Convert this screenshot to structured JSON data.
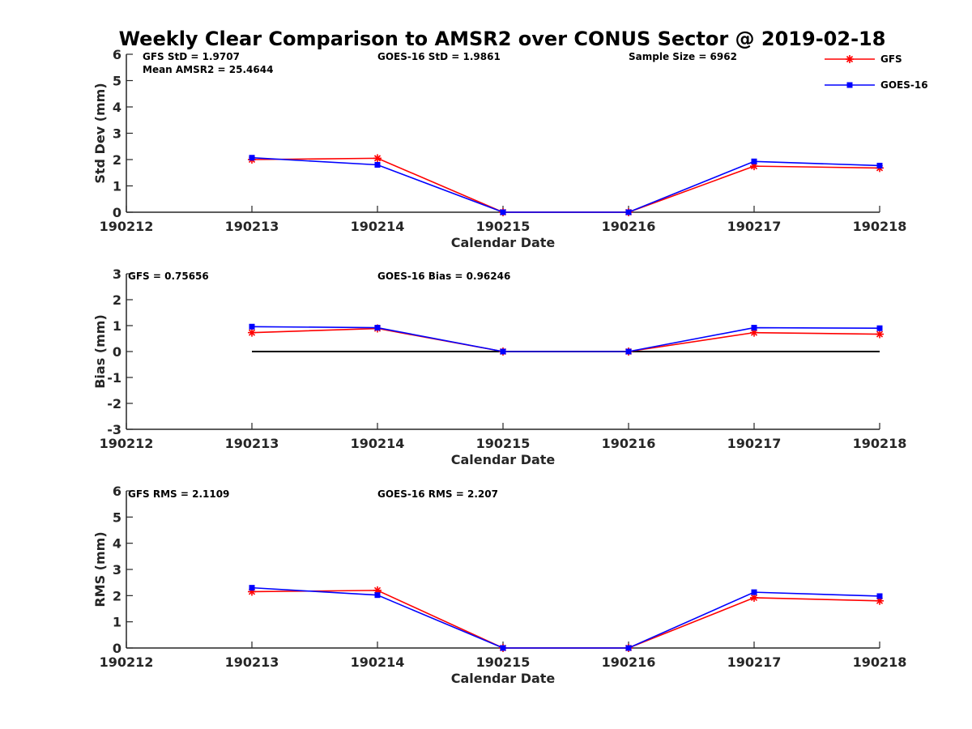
{
  "title": "Weekly Clear Comparison to AMSR2 over CONUS Sector @ 2019-02-18",
  "colors": {
    "gfs": "#ff0000",
    "goes": "#0000ff",
    "axis": "#262626",
    "zero_line": "#000000"
  },
  "legend": {
    "placement": "top-right",
    "items": [
      {
        "label": "GFS",
        "marker": "asterisk",
        "color": "#ff0000"
      },
      {
        "label": "GOES-16",
        "marker": "square",
        "color": "#0000ff"
      }
    ]
  },
  "chart_data": [
    {
      "type": "line",
      "xlabel": "Calendar Date",
      "ylabel": "Std Dev (mm)",
      "x": [
        "190212",
        "190213",
        "190214",
        "190215",
        "190216",
        "190217",
        "190218"
      ],
      "ylim": [
        0,
        6
      ],
      "yticks": [
        "0",
        "1",
        "2",
        "3",
        "4",
        "5",
        "6"
      ],
      "grid": false,
      "annotations": [
        "GFS StD = 1.9707",
        "Mean AMSR2 = 25.4644",
        "GOES-16 StD = 1.9861",
        "Sample Size = 6962"
      ],
      "series": [
        {
          "name": "GFS",
          "x": [
            "190213",
            "190214",
            "190215",
            "190216",
            "190217",
            "190218"
          ],
          "values": [
            2.0,
            2.05,
            0,
            0,
            1.75,
            1.68
          ]
        },
        {
          "name": "GOES-16",
          "x": [
            "190213",
            "190214",
            "190215",
            "190216",
            "190217",
            "190218"
          ],
          "values": [
            2.07,
            1.8,
            0,
            0,
            1.93,
            1.77
          ]
        }
      ]
    },
    {
      "type": "line",
      "xlabel": "Calendar Date",
      "ylabel": "Bias (mm)",
      "x": [
        "190212",
        "190213",
        "190214",
        "190215",
        "190216",
        "190217",
        "190218"
      ],
      "ylim": [
        -3,
        3
      ],
      "yticks": [
        "-3",
        "-2",
        "-1",
        "0",
        "1",
        "2",
        "3"
      ],
      "grid": false,
      "annotations": [
        "GFS = 0.75656",
        "GOES-16 Bias  = 0.96246"
      ],
      "reference_line": {
        "y": 0,
        "from": "190213",
        "to": "190218"
      },
      "series": [
        {
          "name": "GFS",
          "x": [
            "190213",
            "190214",
            "190215",
            "190216",
            "190217",
            "190218"
          ],
          "values": [
            0.73,
            0.89,
            0,
            0,
            0.73,
            0.67
          ]
        },
        {
          "name": "GOES-16",
          "x": [
            "190213",
            "190214",
            "190215",
            "190216",
            "190217",
            "190218"
          ],
          "values": [
            0.96,
            0.92,
            0,
            0,
            0.92,
            0.9
          ]
        }
      ]
    },
    {
      "type": "line",
      "xlabel": "Calendar Date",
      "ylabel": "RMS (mm)",
      "x": [
        "190212",
        "190213",
        "190214",
        "190215",
        "190216",
        "190217",
        "190218"
      ],
      "ylim": [
        0,
        6
      ],
      "yticks": [
        "0",
        "1",
        "2",
        "3",
        "4",
        "5",
        "6"
      ],
      "grid": false,
      "annotations": [
        "GFS RMS = 2.1109",
        "GOES-16 RMS = 2.207"
      ],
      "series": [
        {
          "name": "GFS",
          "x": [
            "190213",
            "190214",
            "190215",
            "190216",
            "190217",
            "190218"
          ],
          "values": [
            2.15,
            2.2,
            0,
            0,
            1.92,
            1.8
          ]
        },
        {
          "name": "GOES-16",
          "x": [
            "190213",
            "190214",
            "190215",
            "190216",
            "190217",
            "190218"
          ],
          "values": [
            2.3,
            2.02,
            0,
            0,
            2.13,
            1.98
          ]
        }
      ]
    }
  ]
}
